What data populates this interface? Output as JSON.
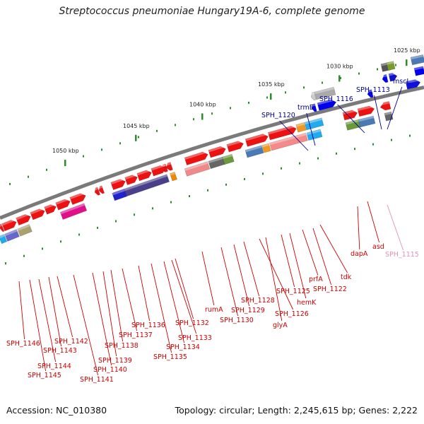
{
  "title": "Streptococcus pneumoniae Hungary19A-6, complete genome",
  "footer": {
    "accession": "Accession: NC_010380",
    "topology": "Topology: circular; Length: 2,245,615 bp; Genes: 2,222"
  },
  "ruler_ticks": [
    "1025 kbp",
    "1030 kbp",
    "1035 kbp",
    "1040 kbp",
    "1045 kbp",
    "1050 kbp"
  ],
  "colors": {
    "backbone": "#7a7a7a",
    "label_red": "#cc0000",
    "label_blue": "#00008b",
    "label_pink": "#e58fb4",
    "gene_red": "#ee1111",
    "tick": "#2e8b2e"
  },
  "genes": [
    {
      "label": "mscL",
      "color": "blue"
    },
    {
      "label": "SPH_1113",
      "color": "blue"
    },
    {
      "label": "SPH_1116",
      "color": "blue"
    },
    {
      "label": "trmE",
      "color": "blue"
    },
    {
      "label": "SPH_1120",
      "color": "blue"
    },
    {
      "label": "SPH_1115",
      "color": "pink"
    },
    {
      "label": "asd",
      "color": "red"
    },
    {
      "label": "dapA",
      "color": "red"
    },
    {
      "label": "tdk",
      "color": "red"
    },
    {
      "label": "SPH_1122",
      "color": "red"
    },
    {
      "label": "prfA",
      "color": "red"
    },
    {
      "label": "hemK",
      "color": "red"
    },
    {
      "label": "SPH_1125",
      "color": "red"
    },
    {
      "label": "SPH_1126",
      "color": "red"
    },
    {
      "label": "glyA",
      "color": "red"
    },
    {
      "label": "SPH_1128",
      "color": "red"
    },
    {
      "label": "SPH_1129",
      "color": "red"
    },
    {
      "label": "SPH_1130",
      "color": "red"
    },
    {
      "label": "rumA",
      "color": "red"
    },
    {
      "label": "SPH_1132",
      "color": "red"
    },
    {
      "label": "SPH_1133",
      "color": "red"
    },
    {
      "label": "SPH_1134",
      "color": "red"
    },
    {
      "label": "SPH_1135",
      "color": "red"
    },
    {
      "label": "SPH_1136",
      "color": "red"
    },
    {
      "label": "SPH_1137",
      "color": "red"
    },
    {
      "label": "SPH_1138",
      "color": "red"
    },
    {
      "label": "SPH_1139",
      "color": "red"
    },
    {
      "label": "SPH_1140",
      "color": "red"
    },
    {
      "label": "SPH_1141",
      "color": "red"
    },
    {
      "label": "SPH_1142",
      "color": "red"
    },
    {
      "label": "SPH_1143",
      "color": "red"
    },
    {
      "label": "SPH_1144",
      "color": "red"
    },
    {
      "label": "SPH_1145",
      "color": "red"
    },
    {
      "label": "SPH_1146",
      "color": "red"
    }
  ]
}
